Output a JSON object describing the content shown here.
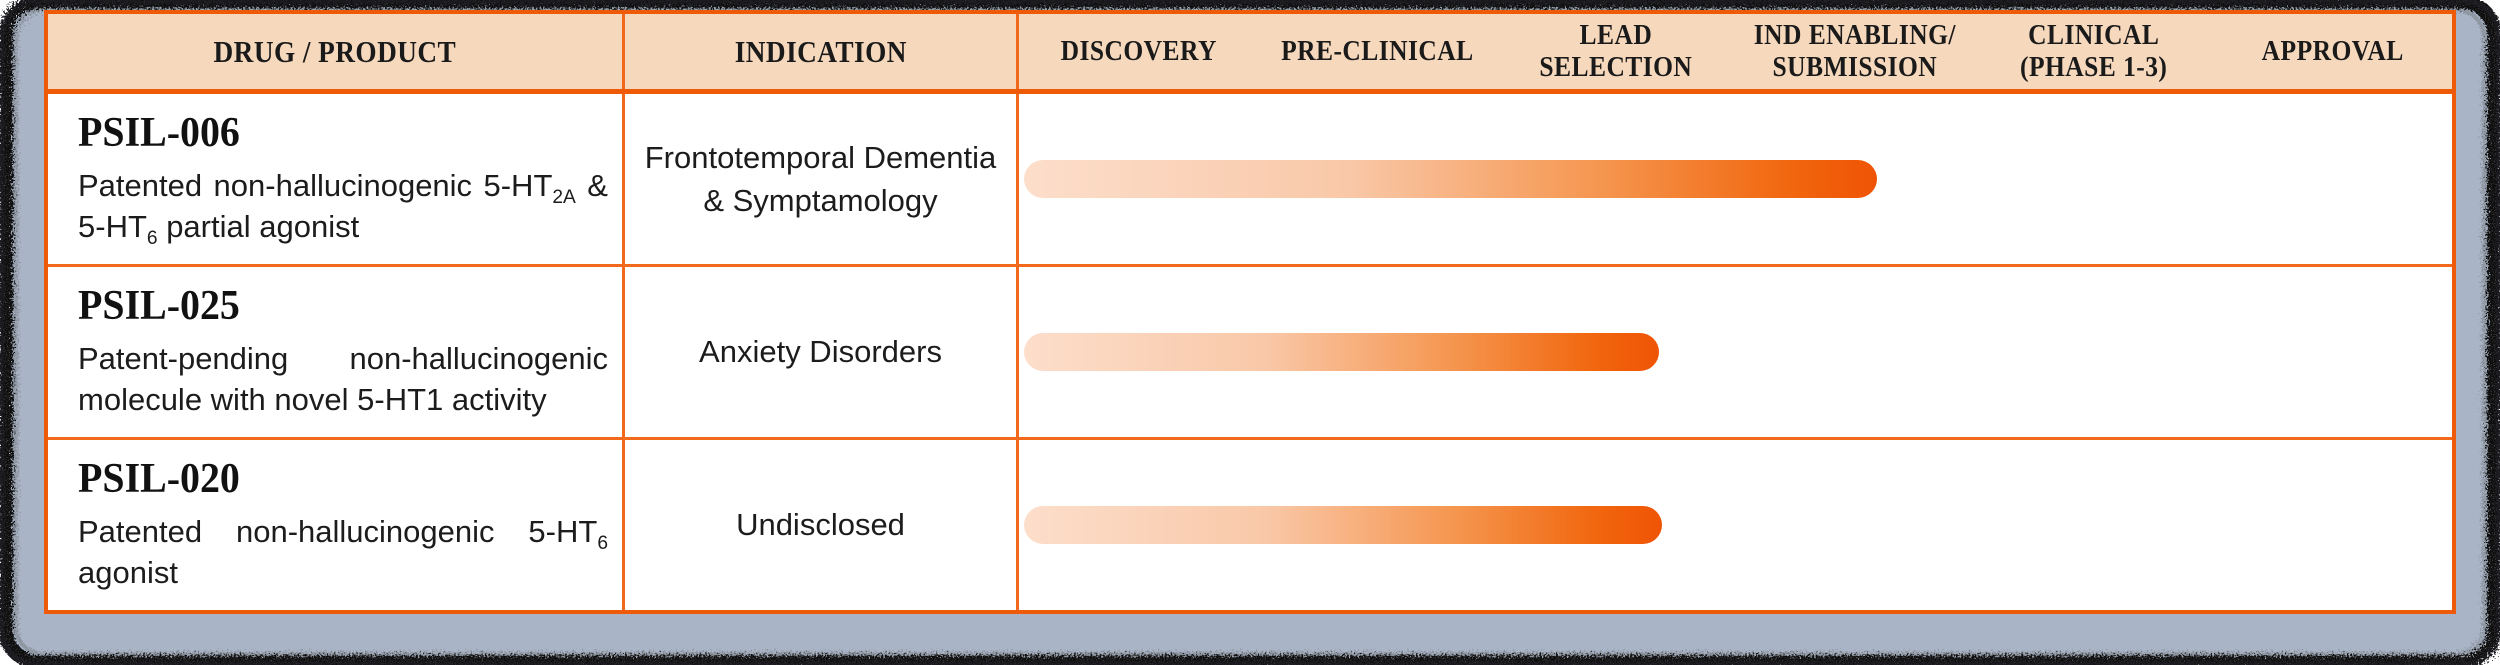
{
  "header": {
    "drug_product": "DRUG / PRODUCT",
    "indication": "INDICATION",
    "phases": [
      "DISCOVERY",
      "PRE-CLINICAL",
      "LEAD\nSELECTION",
      "IND ENABLING/\nSUBMISSION",
      "CLINICAL\n(PHASE 1-3)",
      "APPROVAL"
    ]
  },
  "rows": [
    {
      "drug": "PSIL-006",
      "description": [
        {
          "text": "Patented non-hallucinogenic 5-HT"
        },
        {
          "text": "2A",
          "sub": true
        },
        {
          "text": " & 5-HT"
        },
        {
          "text": "6",
          "sub": true
        },
        {
          "text": " partial agonist"
        }
      ],
      "indication": "Frontotemporal Dementia & Symptamology",
      "progress": {
        "phase_reached": "IND ENABLING/SUBMISSION",
        "width_pct": 59.7
      }
    },
    {
      "drug": "PSIL-025",
      "description": [
        {
          "text": "Patent-pending non-hallucinogenic molecule with novel 5-HT1 activity"
        }
      ],
      "indication": "Anxiety Disorders",
      "progress": {
        "phase_reached": "LEAD SELECTION",
        "width_pct": 44.5
      }
    },
    {
      "drug": "PSIL-020",
      "description": [
        {
          "text": "Patented non-hallucinogenic 5-HT"
        },
        {
          "text": "6",
          "sub": true
        },
        {
          "text": " agonist"
        }
      ],
      "indication": "Undisclosed",
      "progress": {
        "phase_reached": "LEAD SELECTION",
        "width_pct": 44.7
      }
    }
  ],
  "chart_data": {
    "type": "table",
    "columns": [
      "DRUG / PRODUCT",
      "INDICATION",
      "DISCOVERY",
      "PRE-CLINICAL",
      "LEAD SELECTION",
      "IND ENABLING/SUBMISSION",
      "CLINICAL (PHASE 1-3)",
      "APPROVAL"
    ],
    "rows": [
      {
        "drug": "PSIL-006",
        "description": "Patented non-hallucinogenic 5-HT2A & 5-HT6 partial agonist",
        "indication": "Frontotemporal Dementia & Symptamology",
        "progress_phase": "IND ENABLING/SUBMISSION",
        "progress_fraction_of_timeline": 0.6
      },
      {
        "drug": "PSIL-025",
        "description": "Patent-pending non-hallucinogenic molecule with novel 5-HT1 activity",
        "indication": "Anxiety Disorders",
        "progress_phase": "LEAD SELECTION",
        "progress_fraction_of_timeline": 0.44
      },
      {
        "drug": "PSIL-020",
        "description": "Patented non-hallucinogenic 5-HT6 agonist",
        "indication": "Undisclosed",
        "progress_phase": "LEAD SELECTION",
        "progress_fraction_of_timeline": 0.45
      }
    ],
    "legend_position": "none",
    "grid": true
  },
  "colors": {
    "frame_bg": "#a9b4c6",
    "table_border": "#ef5a08",
    "grid_line": "#f2691c",
    "header_bg": "#f6d8bc",
    "bar_start": "#fcdecb",
    "bar_end": "#ef5404",
    "text": "#141414"
  }
}
